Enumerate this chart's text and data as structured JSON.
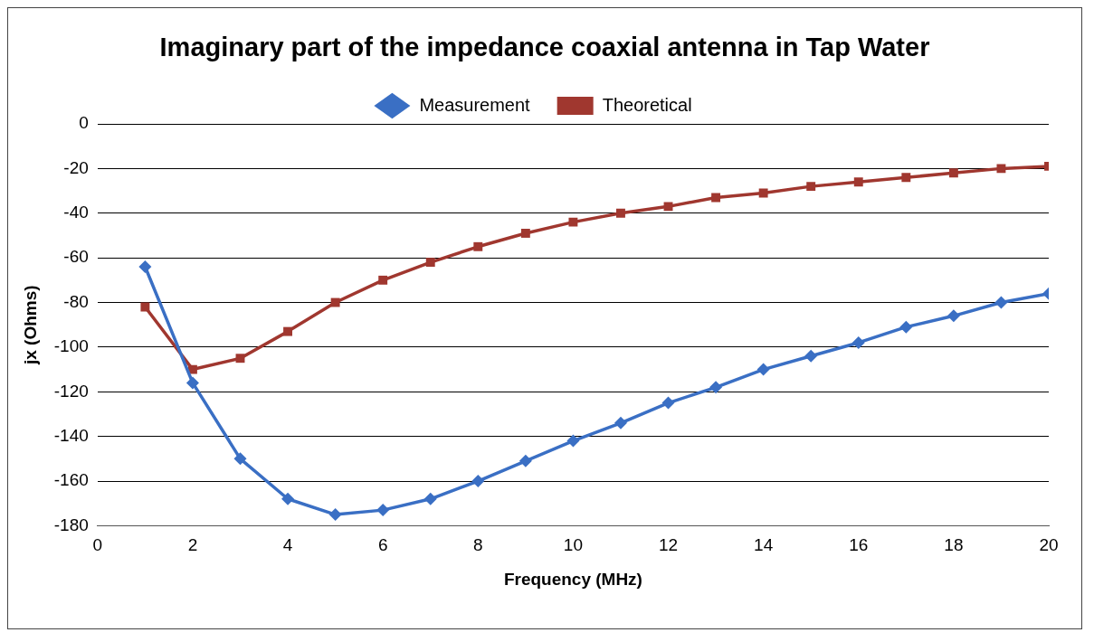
{
  "chart_data": {
    "type": "line",
    "title": "Imaginary part of the impedance coaxial antenna in Tap Water",
    "xlabel": "Frequency (MHz)",
    "ylabel": "jx (Ohms)",
    "x": [
      1,
      2,
      3,
      4,
      5,
      6,
      7,
      8,
      9,
      10,
      11,
      12,
      13,
      14,
      15,
      16,
      17,
      18,
      19,
      20
    ],
    "series": [
      {
        "name": "Measurement",
        "color": "#3a6fc4",
        "marker": "diamond",
        "values": [
          -64,
          -116,
          -150,
          -168,
          -175,
          -173,
          -168,
          -160,
          -151,
          -142,
          -134,
          -125,
          -118,
          -110,
          -104,
          -98,
          -91,
          -86,
          -80,
          -76
        ]
      },
      {
        "name": "Theoretical",
        "color": "#a0372f",
        "marker": "square",
        "values": [
          -82,
          -110,
          -105,
          -93,
          -80,
          -70,
          -62,
          -55,
          -49,
          -44,
          -40,
          -37,
          -33,
          -31,
          -28,
          -26,
          -24,
          -22,
          -20,
          -19
        ]
      }
    ],
    "xlim": [
      0,
      20
    ],
    "xticks": [
      0,
      2,
      4,
      6,
      8,
      10,
      12,
      14,
      16,
      18,
      20
    ],
    "ylim": [
      -180,
      0
    ],
    "yticks": [
      -180,
      -160,
      -140,
      -120,
      -100,
      -80,
      -60,
      -40,
      -20,
      0
    ],
    "grid": "y",
    "legend": "top",
    "line_style": "solid"
  }
}
